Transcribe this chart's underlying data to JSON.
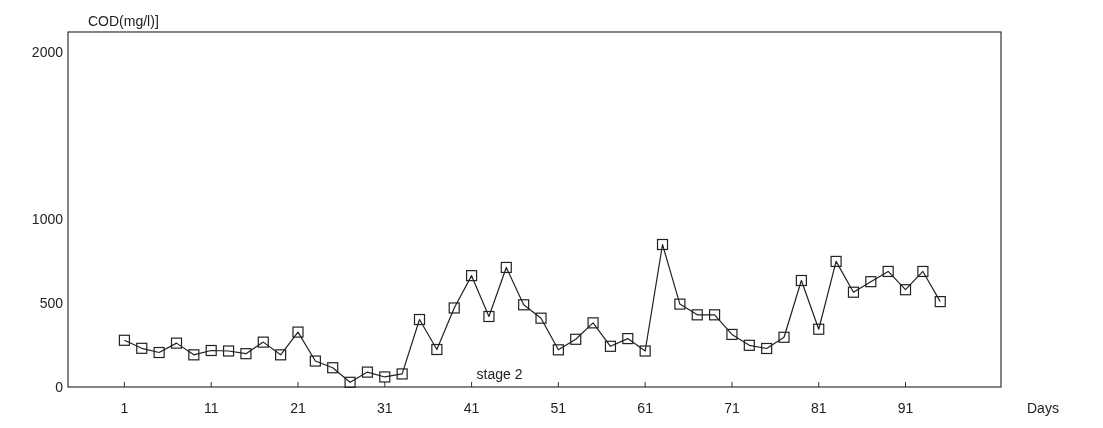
{
  "chart_data": {
    "type": "line",
    "xlabel": "Days",
    "ylabel": "COD(mg/l)]",
    "annotations": [
      "stage 2"
    ],
    "x": [
      1,
      3,
      5,
      7,
      9,
      11,
      13,
      15,
      17,
      19,
      21,
      23,
      25,
      27,
      29,
      31,
      33,
      35,
      37,
      39,
      41,
      43,
      45,
      47,
      49,
      51,
      53,
      55,
      57,
      59,
      61,
      63,
      65,
      67,
      69,
      71,
      73,
      75,
      77,
      79,
      81,
      83,
      85,
      87,
      89,
      91,
      93,
      95
    ],
    "series": [
      {
        "color": "#222222",
        "values": [
          279,
          231,
          206,
          262,
          192,
          218,
          215,
          199,
          268,
          192,
          328,
          155,
          115,
          28,
          89,
          60,
          78,
          403,
          224,
          472,
          665,
          421,
          714,
          491,
          411,
          222,
          285,
          383,
          243,
          289,
          215,
          851,
          495,
          431,
          431,
          314,
          249,
          230,
          297,
          636,
          345,
          750,
          566,
          629,
          690,
          581,
          690,
          510
        ]
      }
    ],
    "xlim": [
      -5.5,
      102
    ],
    "xticks": [
      1,
      11,
      21,
      31,
      41,
      51,
      61,
      71,
      81,
      91
    ],
    "ylim": [
      0,
      2120
    ],
    "yticks": [
      0,
      500,
      1000,
      2000
    ],
    "marker": "square",
    "line_style": "solid",
    "grid": false
  }
}
